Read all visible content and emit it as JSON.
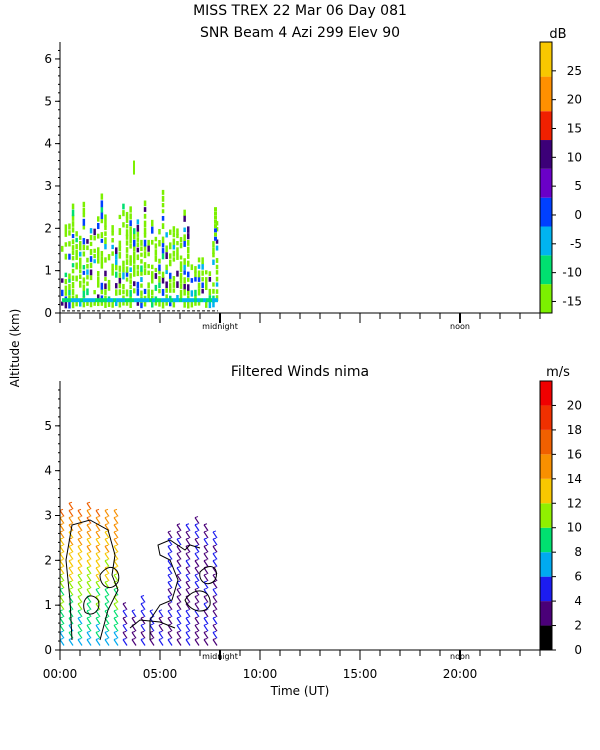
{
  "header": {
    "line1": "MISS TREX   22 Mar 06 Day 081",
    "line2": "SNR Beam 4 Azi 299 Elev 90"
  },
  "shared": {
    "ylabel": "Altitude (km)",
    "xlabel": "Time (UT)",
    "midnight_label": "midnight",
    "noon_label": "noon"
  },
  "chart_data": [
    {
      "type": "heatmap",
      "title": "SNR Beam 4 Azi 299 Elev 90",
      "ylabel": "Altitude (km)",
      "xlim": [
        0,
        24
      ],
      "ylim": [
        0,
        6.4
      ],
      "yticks": [
        0,
        1,
        2,
        3,
        4,
        5,
        6
      ],
      "colorbar": {
        "unit": "dB",
        "range": [
          -17,
          30
        ],
        "ticks": [
          -15,
          -10,
          -5,
          0,
          5,
          10,
          15,
          20,
          25
        ],
        "bins": [
          {
            "from": -17,
            "to": -12,
            "color": "#7cf000"
          },
          {
            "from": -12,
            "to": -7,
            "color": "#00e070"
          },
          {
            "from": -7,
            "to": -2,
            "color": "#00b4f0"
          },
          {
            "from": -2,
            "to": 3,
            "color": "#0040ff"
          },
          {
            "from": 3,
            "to": 8,
            "color": "#6a00c8"
          },
          {
            "from": 8,
            "to": 13,
            "color": "#3c0078"
          },
          {
            "from": 13,
            "to": 18,
            "color": "#f02000"
          },
          {
            "from": 18,
            "to": 24,
            "color": "#ff9000"
          },
          {
            "from": 24,
            "to": 30,
            "color": "#f8c800"
          }
        ]
      },
      "data_time_range_hours": [
        0,
        7.9
      ],
      "data_max_altitude_km": 3.6,
      "grid": false
    },
    {
      "type": "scatter",
      "title": "Filtered Winds nima",
      "ylabel": "Altitude (km)",
      "xlabel": "Time (UT)",
      "xlim": [
        0,
        24
      ],
      "ylim": [
        0,
        6
      ],
      "yticks": [
        0,
        1,
        2,
        3,
        4,
        5
      ],
      "xticks": [
        0,
        5,
        10,
        15,
        20
      ],
      "xtick_labels": [
        "00:00",
        "05:00",
        "10:00",
        "15:00",
        "20:00"
      ],
      "colorbar": {
        "unit": "m/s",
        "range": [
          0,
          22
        ],
        "ticks": [
          0,
          2,
          4,
          6,
          8,
          10,
          12,
          14,
          16,
          18,
          20
        ],
        "bins": [
          {
            "from": 0,
            "to": 2,
            "color": "#000000"
          },
          {
            "from": 2,
            "to": 4,
            "color": "#4a0078"
          },
          {
            "from": 4,
            "to": 6,
            "color": "#1c1cf0"
          },
          {
            "from": 6,
            "to": 8,
            "color": "#00aaf0"
          },
          {
            "from": 8,
            "to": 10,
            "color": "#00e070"
          },
          {
            "from": 10,
            "to": 12,
            "color": "#90f000"
          },
          {
            "from": 12,
            "to": 14,
            "color": "#f8c800"
          },
          {
            "from": 14,
            "to": 16,
            "color": "#f89000"
          },
          {
            "from": 16,
            "to": 18,
            "color": "#f06000"
          },
          {
            "from": 18,
            "to": 20,
            "color": "#f03000"
          },
          {
            "from": 20,
            "to": 22,
            "color": "#f00000"
          }
        ]
      },
      "data_time_range_hours": [
        0,
        7.9
      ],
      "data_max_altitude_km": 3.2,
      "grid": false
    }
  ],
  "colors": {
    "axes": "#000000",
    "background": "#ffffff"
  }
}
